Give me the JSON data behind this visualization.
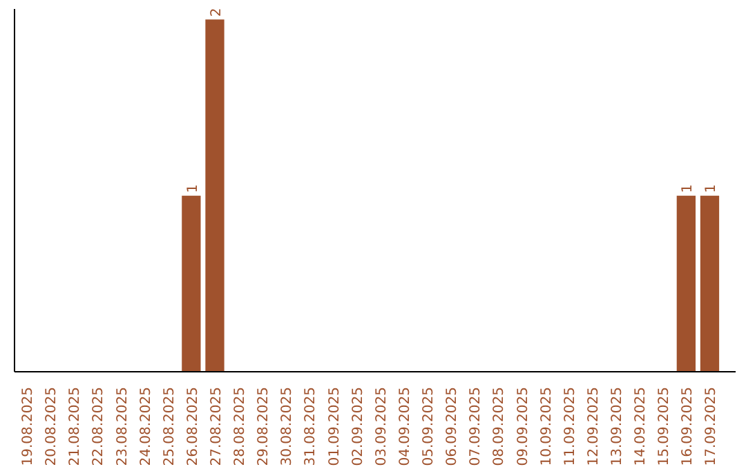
{
  "chart_data": {
    "type": "bar",
    "categories": [
      "19.08.2025",
      "20.08.2025",
      "21.08.2025",
      "22.08.2025",
      "23.08.2025",
      "24.08.2025",
      "25.08.2025",
      "26.08.2025",
      "27.08.2025",
      "28.08.2025",
      "29.08.2025",
      "30.08.2025",
      "31.08.2025",
      "01.09.2025",
      "02.09.2025",
      "03.09.2025",
      "04.09.2025",
      "05.09.2025",
      "06.09.2025",
      "07.09.2025",
      "08.09.2025",
      "09.09.2025",
      "10.09.2025",
      "11.09.2025",
      "12.09.2025",
      "13.09.2025",
      "14.09.2025",
      "15.09.2025",
      "16.09.2025",
      "17.09.2025"
    ],
    "values": [
      0,
      0,
      0,
      0,
      0,
      0,
      0,
      1,
      2,
      0,
      0,
      0,
      0,
      0,
      0,
      0,
      0,
      0,
      0,
      0,
      0,
      0,
      0,
      0,
      0,
      0,
      0,
      0,
      1,
      1
    ],
    "value_labels": [
      null,
      null,
      null,
      null,
      null,
      null,
      null,
      "1",
      "2",
      null,
      null,
      null,
      null,
      null,
      null,
      null,
      null,
      null,
      null,
      null,
      null,
      null,
      null,
      null,
      null,
      null,
      null,
      null,
      "1",
      "1"
    ],
    "color": "#a0522d",
    "tick_labels": "x",
    "grid": false
  }
}
